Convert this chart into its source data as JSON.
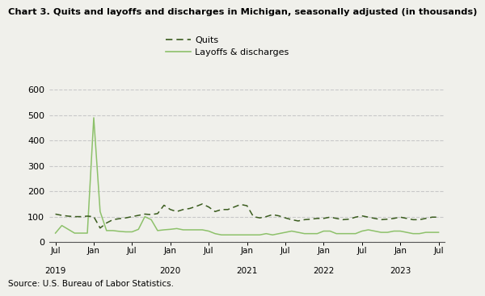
{
  "title": "Chart 3. Quits and layoffs and discharges in Michigan, seasonally adjusted (in thousands)",
  "source": "Source: U.S. Bureau of Labor Statistics.",
  "quits_label": "Quits",
  "layoffs_label": "Layoffs & discharges",
  "quits_color": "#3a5c1e",
  "layoffs_color": "#8dc16a",
  "background_color": "#f0f0eb",
  "ylim": [
    0,
    600
  ],
  "yticks": [
    0,
    100,
    200,
    300,
    400,
    500,
    600
  ],
  "quits": [
    110,
    105,
    102,
    100,
    100,
    102,
    100,
    55,
    75,
    88,
    92,
    95,
    100,
    105,
    110,
    108,
    112,
    145,
    128,
    120,
    128,
    132,
    140,
    150,
    138,
    120,
    128,
    128,
    138,
    148,
    143,
    100,
    95,
    100,
    108,
    103,
    95,
    88,
    83,
    88,
    90,
    93,
    93,
    98,
    93,
    88,
    90,
    98,
    103,
    98,
    93,
    88,
    90,
    93,
    98,
    93,
    88,
    88,
    93,
    98,
    98
  ],
  "layoffs": [
    35,
    65,
    50,
    35,
    35,
    35,
    490,
    120,
    45,
    45,
    42,
    40,
    40,
    50,
    100,
    88,
    45,
    48,
    50,
    53,
    48,
    48,
    48,
    48,
    43,
    33,
    28,
    28,
    28,
    28,
    28,
    28,
    28,
    33,
    28,
    33,
    38,
    43,
    38,
    33,
    33,
    33,
    43,
    43,
    33,
    33,
    33,
    33,
    43,
    48,
    43,
    38,
    38,
    43,
    43,
    38,
    33,
    33,
    38,
    38,
    38
  ],
  "x_tick_positions": [
    0,
    6,
    12,
    18,
    24,
    30,
    36,
    42,
    48,
    54,
    60
  ],
  "x_month_labels": [
    "Jul",
    "Jan",
    "Jul",
    "Jan",
    "Jul",
    "Jan",
    "Jul",
    "Jan",
    "Jul",
    "Jan",
    "Jul"
  ],
  "year_positions": [
    0,
    18,
    30,
    42,
    54
  ],
  "year_labels": [
    "2019",
    "2020",
    "2021",
    "2022",
    "2023"
  ]
}
